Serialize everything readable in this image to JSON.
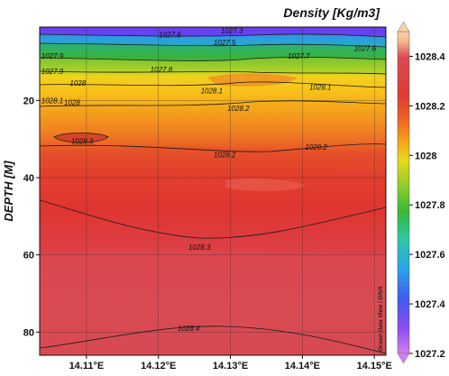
{
  "chart_data": {
    "type": "heatmap",
    "title": "Density [Kg/m3]",
    "ylabel": "DEPTH [M]",
    "xlabel": "",
    "x_ticks": [
      "14.11°E",
      "14.12°E",
      "14.13°E",
      "14.14°E",
      "14.15°E"
    ],
    "x_tick_values": [
      14.11,
      14.12,
      14.13,
      14.14,
      14.15
    ],
    "xlim": [
      14.1035,
      14.1516
    ],
    "y_ticks": [
      "20",
      "40",
      "60",
      "80"
    ],
    "y_tick_values": [
      20,
      40,
      60,
      80
    ],
    "ylim": [
      86,
      1
    ],
    "colorbar": {
      "ticks": [
        "1028.4",
        "1028.2",
        "1028",
        "1027.8",
        "1027.6",
        "1027.4",
        "1027.2"
      ],
      "tick_values": [
        1028.4,
        1028.2,
        1028.0,
        1027.8,
        1027.6,
        1027.4,
        1027.2
      ],
      "range": [
        1027.2,
        1028.5
      ],
      "colors": [
        "#d27ff0",
        "#8a4cf0",
        "#3f5cf0",
        "#27a8e8",
        "#2ec9a0",
        "#37b837",
        "#8fcd2a",
        "#e8d81c",
        "#f5a31a",
        "#ef6a22",
        "#e03a34",
        "#d94b54",
        "#f4b88e",
        "#fbd0a8"
      ]
    },
    "contour_labels": [
      {
        "text": "1027.3",
        "x": 14.1302,
        "y": 1
      },
      {
        "text": "1027.5",
        "x": 14.1292,
        "y": 5
      },
      {
        "text": "1027.6",
        "x": 14.1216,
        "y": 3
      },
      {
        "text": "1027.6",
        "x": 14.1487,
        "y": 6.5
      },
      {
        "text": "1027.7",
        "x": 14.1395,
        "y": 8.5
      },
      {
        "text": "1027.8",
        "x": 14.1204,
        "y": 12
      },
      {
        "text": "1027.9",
        "x": 14.1045,
        "y": 8.5
      },
      {
        "text": "1027.9",
        "x": 14.1045,
        "y": 12.5
      },
      {
        "text": "1028",
        "x": 14.1088,
        "y": 15.5
      },
      {
        "text": "1028",
        "x": 14.108,
        "y": 20.5
      },
      {
        "text": "1028.1",
        "x": 14.104,
        "y": 20
      },
      {
        "text": "1028.1",
        "x": 14.1274,
        "y": 17.5
      },
      {
        "text": "1028.1",
        "x": 14.1425,
        "y": 16.5
      },
      {
        "text": "1028.2",
        "x": 14.1311,
        "y": 22
      },
      {
        "text": "1028.2",
        "x": 14.1292,
        "y": 34
      },
      {
        "text": "1028.2",
        "x": 14.1419,
        "y": 32
      },
      {
        "text": "1028.3",
        "x": 14.1094,
        "y": 30.5
      },
      {
        "text": "1028.3",
        "x": 14.1257,
        "y": 58
      },
      {
        "text": "1028.4",
        "x": 14.1242,
        "y": 79
      }
    ],
    "grid": true,
    "credit": "Ocean Data View / DIVA"
  }
}
